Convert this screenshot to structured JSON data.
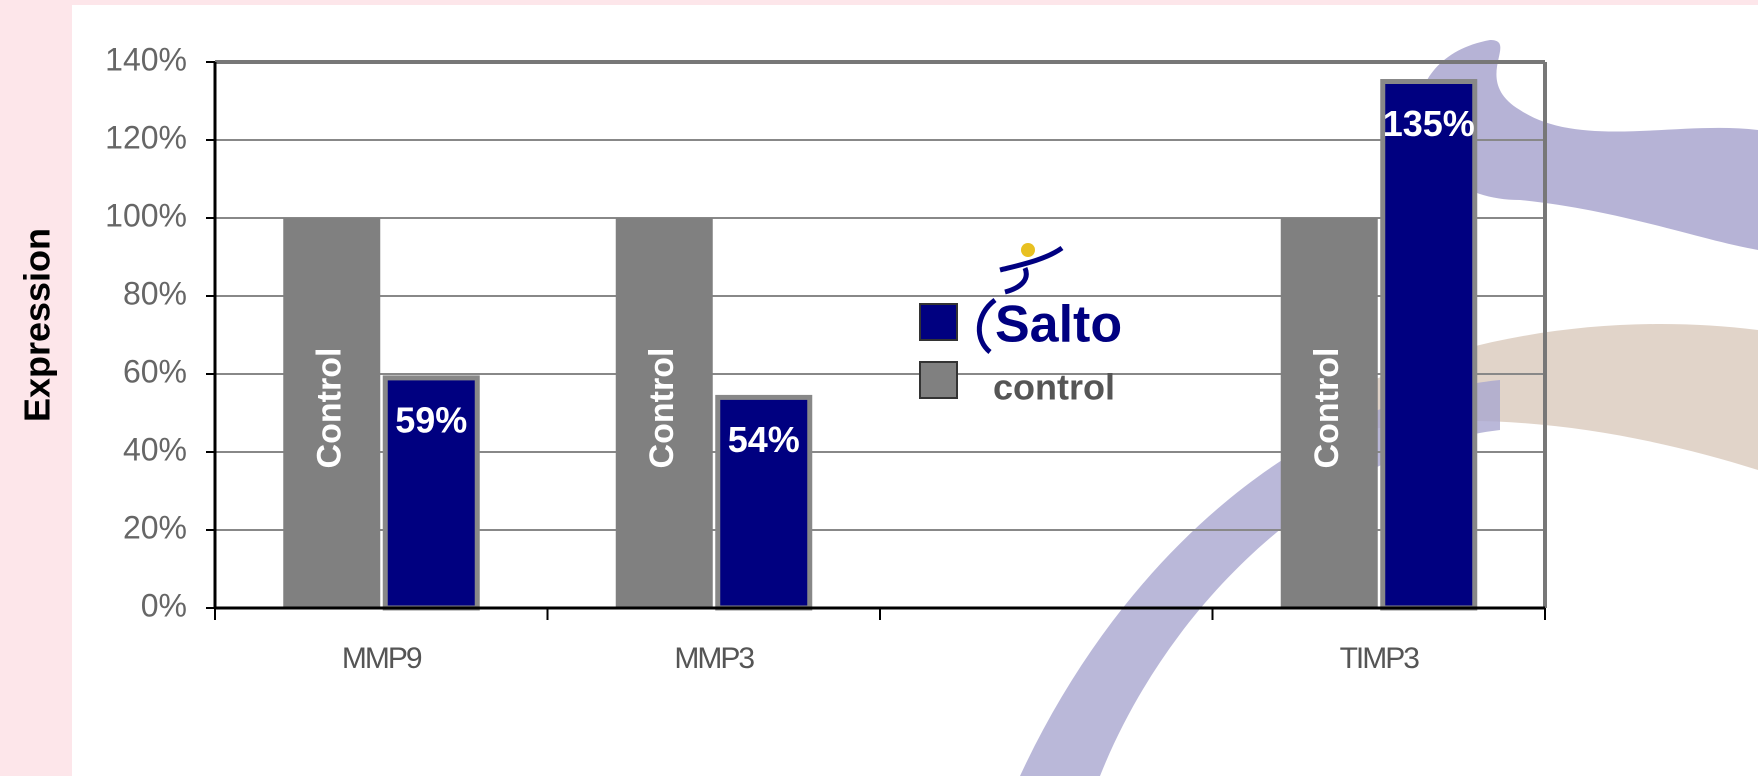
{
  "chart_data": {
    "type": "bar",
    "y_label": "Expression",
    "categories": [
      "MMP9",
      "MMP3",
      null,
      "TIMP3"
    ],
    "series": [
      {
        "name": "control",
        "color": "#808080",
        "values": [
          100,
          100,
          null,
          100
        ],
        "bar_label": "Control"
      },
      {
        "name": "Salto",
        "color": "#000080",
        "values": [
          59,
          54,
          null,
          135
        ],
        "value_labels": [
          "59%",
          "54%",
          null,
          "135%"
        ]
      }
    ],
    "ylim": [
      0,
      140
    ],
    "yticks": [
      {
        "value": 0,
        "label": "0%"
      },
      {
        "value": 20,
        "label": "20%"
      },
      {
        "value": 40,
        "label": "40%"
      },
      {
        "value": 60,
        "label": "60%"
      },
      {
        "value": 80,
        "label": "80%"
      },
      {
        "value": 100,
        "label": "100%"
      },
      {
        "value": 120,
        "label": "120%"
      },
      {
        "value": 140,
        "label": "140%"
      }
    ],
    "grid": true
  }
}
